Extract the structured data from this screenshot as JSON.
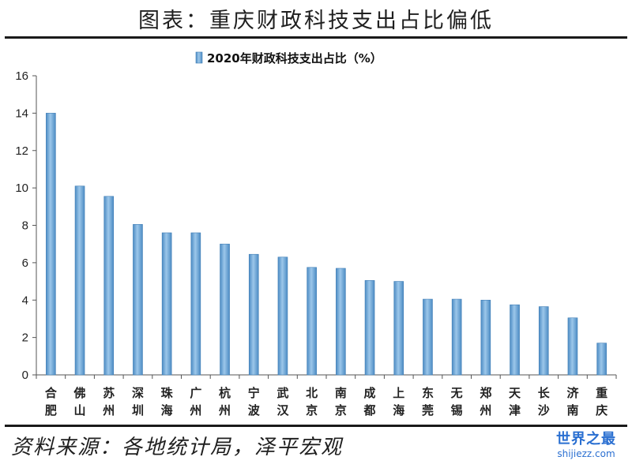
{
  "header": {
    "title": "图表：重庆财政科技支出占比偏低"
  },
  "footer": {
    "source": "资料来源：各地统计局，泽平宏观"
  },
  "watermark": {
    "main": "世界之最",
    "sub": "shijiezz.com"
  },
  "chart_data": {
    "type": "bar",
    "title": "",
    "xlabel": "",
    "ylabel": "",
    "ylim": [
      0,
      16
    ],
    "yticks": [
      0,
      2,
      4,
      6,
      8,
      10,
      12,
      14,
      16
    ],
    "grid": false,
    "legend_position": "top",
    "bar_color": "#6aa6d6",
    "categories": [
      "合肥",
      "佛山",
      "苏州",
      "深圳",
      "珠海",
      "广州",
      "杭州",
      "宁波",
      "武汉",
      "北京",
      "南京",
      "成都",
      "上海",
      "东莞",
      "无锡",
      "郑州",
      "天津",
      "长沙",
      "济南",
      "重庆"
    ],
    "series": [
      {
        "name": "2020年财政科技支出占比（%）",
        "values": [
          14.0,
          10.1,
          9.55,
          8.05,
          7.6,
          7.6,
          7.0,
          6.45,
          6.3,
          5.75,
          5.7,
          5.05,
          5.0,
          4.05,
          4.05,
          4.0,
          3.75,
          3.65,
          3.05,
          1.7
        ]
      }
    ]
  }
}
